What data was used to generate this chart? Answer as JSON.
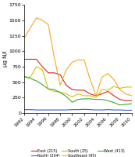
{
  "years": [
    1992,
    1993,
    1994,
    1995,
    1996,
    1997,
    1998,
    1999,
    2000,
    2001,
    2002,
    2003,
    2004,
    2005,
    2006,
    2007,
    2008,
    2009,
    2010
  ],
  "East": [
    870,
    870,
    870,
    750,
    650,
    650,
    620,
    450,
    380,
    370,
    370,
    310,
    280,
    310,
    350,
    280,
    220,
    200,
    200
  ],
  "North": [
    55,
    55,
    50,
    50,
    50,
    50,
    50,
    50,
    55,
    55,
    60,
    55,
    50,
    50,
    55,
    50,
    50,
    45,
    45
  ],
  "South": [
    580,
    580,
    750,
    700,
    390,
    350,
    340,
    310,
    260,
    310,
    280,
    280,
    250,
    380,
    370,
    430,
    400,
    420,
    420
  ],
  "Southeast": [
    1220,
    1380,
    1540,
    1500,
    1430,
    900,
    450,
    700,
    820,
    860,
    860,
    550,
    280,
    580,
    640,
    540,
    380,
    310,
    280
  ],
  "West": [
    590,
    560,
    520,
    460,
    390,
    380,
    330,
    270,
    175,
    220,
    230,
    230,
    220,
    220,
    200,
    170,
    130,
    140,
    150
  ],
  "colors": {
    "East": "#d9261c",
    "North": "#3a5fcd",
    "South": "#d4c400",
    "Southeast": "#f5a623",
    "West": "#3aaa35"
  },
  "labels": {
    "East": "East (215)",
    "North": "North (204)",
    "South": "South (25)",
    "Southeast": "Southeast (95)",
    "West": "West (413)"
  },
  "ylabel": "µg N/l",
  "ylim": [
    0,
    1750
  ],
  "yticks": [
    0,
    250,
    500,
    750,
    1000,
    1250,
    1500,
    1750
  ],
  "xtick_years": [
    1992,
    1994,
    1996,
    1998,
    2000,
    2002,
    2004,
    2006,
    2008,
    2010
  ],
  "background_color": "#ffffff"
}
